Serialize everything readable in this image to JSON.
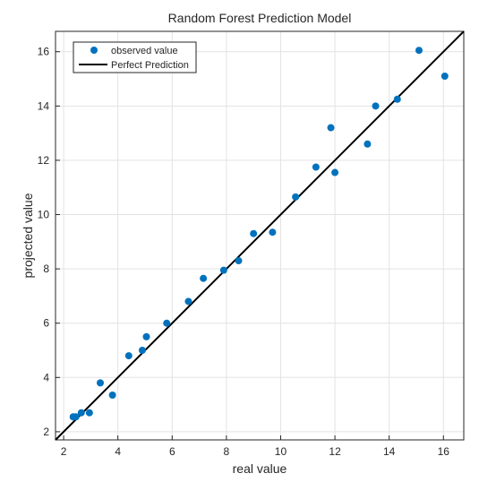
{
  "chart_data": {
    "type": "scatter",
    "title": "Random Forest Prediction Model",
    "xlabel": "real value",
    "ylabel": "projected value",
    "xlim": [
      1.7,
      16.75
    ],
    "ylim": [
      1.7,
      16.75
    ],
    "xticks": [
      2,
      4,
      6,
      8,
      10,
      12,
      14,
      16
    ],
    "yticks": [
      2,
      4,
      6,
      8,
      10,
      12,
      14,
      16
    ],
    "grid": true,
    "legend_position": "top-left",
    "series": [
      {
        "name": "observed value",
        "kind": "markers",
        "color": "#0072BD",
        "points": [
          [
            2.35,
            2.55
          ],
          [
            2.45,
            2.55
          ],
          [
            2.65,
            2.7
          ],
          [
            2.95,
            2.7
          ],
          [
            3.35,
            3.8
          ],
          [
            3.8,
            3.35
          ],
          [
            4.4,
            4.8
          ],
          [
            4.9,
            5.0
          ],
          [
            5.05,
            5.5
          ],
          [
            5.8,
            6.0
          ],
          [
            6.6,
            6.8
          ],
          [
            7.15,
            7.65
          ],
          [
            7.9,
            7.95
          ],
          [
            8.45,
            8.3
          ],
          [
            9.0,
            9.3
          ],
          [
            9.7,
            9.35
          ],
          [
            10.55,
            10.65
          ],
          [
            11.3,
            11.75
          ],
          [
            11.85,
            13.2
          ],
          [
            12.0,
            11.55
          ],
          [
            13.2,
            12.6
          ],
          [
            13.5,
            14.0
          ],
          [
            14.3,
            14.25
          ],
          [
            15.1,
            16.05
          ],
          [
            16.05,
            15.1
          ]
        ]
      },
      {
        "name": "Perfect Prediction",
        "kind": "line",
        "color": "#000000",
        "points": [
          [
            1.7,
            1.7
          ],
          [
            16.75,
            16.75
          ]
        ]
      }
    ]
  }
}
